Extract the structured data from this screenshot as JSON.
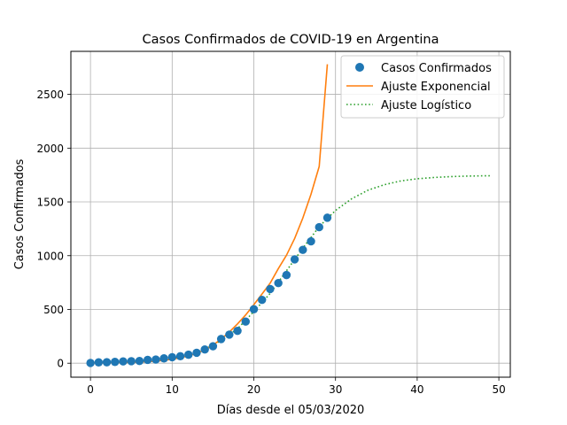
{
  "chart_data": {
    "type": "scatter",
    "title": "Casos Confirmados de COVID-19 en Argentina",
    "xlabel": "Días desde el 05/03/2020",
    "ylabel": "Casos Confirmados",
    "xlim": [
      -2.4,
      51.4
    ],
    "ylim": [
      -130,
      2900
    ],
    "xticks": [
      0,
      10,
      20,
      30,
      40,
      50
    ],
    "yticks": [
      0,
      500,
      1000,
      1500,
      2000,
      2500
    ],
    "grid": true,
    "legend_position": "top-right",
    "series": [
      {
        "name": "Casos Confirmados",
        "kind": "markers",
        "color": "#1f77b4",
        "x": [
          0,
          1,
          2,
          3,
          4,
          5,
          6,
          7,
          8,
          9,
          10,
          11,
          12,
          13,
          14,
          15,
          16,
          17,
          18,
          19,
          20,
          21,
          22,
          23,
          24,
          25,
          26,
          27,
          28,
          29
        ],
        "y": [
          2,
          8,
          9,
          12,
          17,
          19,
          21,
          31,
          34,
          45,
          56,
          65,
          79,
          97,
          128,
          158,
          225,
          266,
          301,
          387,
          502,
          589,
          690,
          745,
          820,
          966,
          1054,
          1133,
          1265,
          1353
        ]
      },
      {
        "name": "Ajuste Exponencial",
        "kind": "line",
        "color": "#ff7f0e",
        "x": [
          0,
          1,
          2,
          3,
          4,
          5,
          6,
          7,
          8,
          9,
          10,
          11,
          12,
          13,
          14,
          15,
          16,
          17,
          18,
          19,
          20,
          21,
          22,
          23,
          24,
          25,
          26,
          27,
          28,
          29
        ],
        "y": [
          1.8,
          2.4,
          3.3,
          4.5,
          6,
          8,
          11,
          15,
          20,
          27,
          37,
          50,
          68,
          92,
          124,
          167,
          225,
          290,
          366,
          449,
          544,
          643,
          745,
          880,
          1005,
          1160,
          1350,
          1570,
          1830,
          2780
        ]
      },
      {
        "name": "Ajuste Logístico",
        "kind": "dotted",
        "color": "#2ca02c",
        "x": [
          0,
          2,
          4,
          6,
          8,
          10,
          12,
          14,
          16,
          18,
          20,
          22,
          24,
          26,
          28,
          30,
          32,
          34,
          36,
          38,
          40,
          42,
          44,
          46,
          48,
          49
        ],
        "y": [
          3,
          6,
          10,
          17,
          28,
          46,
          78,
          130,
          210,
          320,
          480,
          650,
          860,
          1070,
          1270,
          1420,
          1530,
          1610,
          1660,
          1695,
          1715,
          1727,
          1735,
          1740,
          1742,
          1743
        ]
      }
    ]
  }
}
